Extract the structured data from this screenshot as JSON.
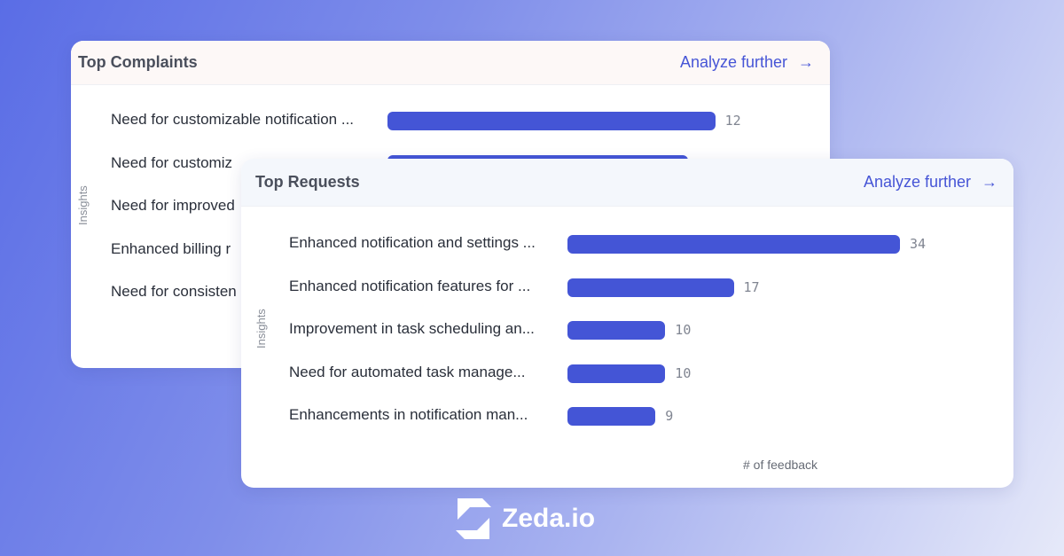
{
  "complaints": {
    "title": "Top Complaints",
    "analyze": "Analyze further",
    "y_label": "Insights",
    "items": [
      {
        "label": "Need for customizable notification ...",
        "value": 12,
        "value_label": "12"
      },
      {
        "label": "Need for customiz",
        "value": 11
      },
      {
        "label": "Need for improved",
        "value": null
      },
      {
        "label": "Enhanced billing r",
        "value": null
      },
      {
        "label": "Need for consisten",
        "value": null
      }
    ]
  },
  "requests": {
    "title": "Top Requests",
    "analyze": "Analyze further",
    "y_label": "Insights",
    "x_label": "# of feedback",
    "items": [
      {
        "label": "Enhanced notification and settings ...",
        "value": 34,
        "value_label": "34"
      },
      {
        "label": "Enhanced notification features for ...",
        "value": 17,
        "value_label": "17"
      },
      {
        "label": "Improvement in task scheduling an...",
        "value": 10,
        "value_label": "10"
      },
      {
        "label": "Need for automated task manage...",
        "value": 10,
        "value_label": "10"
      },
      {
        "label": "Enhancements in notification man...",
        "value": 9,
        "value_label": "9"
      }
    ]
  },
  "brand": {
    "name": "Zeda.io"
  },
  "colors": {
    "bar": "#4455d6",
    "link": "#4655d6"
  },
  "icons": {
    "analyze": "arrow-right-icon"
  }
}
